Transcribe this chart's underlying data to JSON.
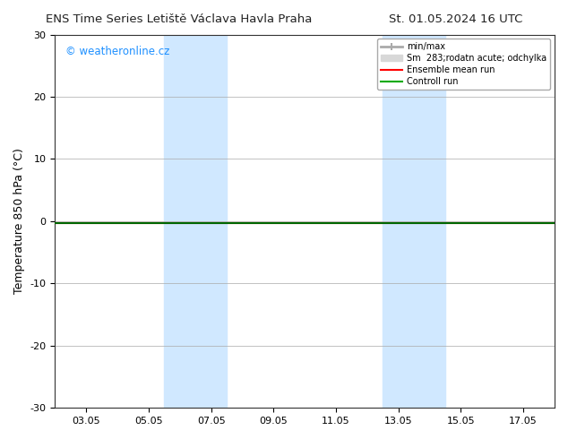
{
  "title_left": "ENS Time Series Letiště Václava Havla Praha",
  "title_right": "St. 01.05.2024 16 UTC",
  "ylabel": "Temperature 850 hPa (°C)",
  "watermark": "© weatheronline.cz",
  "watermark_color": "#1E90FF",
  "xlim_start": "2024-05-02",
  "xlim_end": "2024-05-18",
  "ylim": [
    -30,
    30
  ],
  "yticks": [
    -30,
    -20,
    -10,
    0,
    10,
    20,
    30
  ],
  "xtick_labels": [
    "03.05",
    "05.05",
    "07.05",
    "09.05",
    "11.05",
    "13.05",
    "15.05",
    "17.05"
  ],
  "xtick_positions": [
    1,
    3,
    5,
    7,
    9,
    11,
    13,
    15
  ],
  "bg_color": "#ffffff",
  "plot_bg_color": "#ffffff",
  "grid_color": "#aaaaaa",
  "shaded_regions": [
    {
      "x_start": 3.5,
      "x_end": 5.5,
      "color": "#d0e8ff"
    },
    {
      "x_start": 10.5,
      "x_end": 12.5,
      "color": "#d0e8ff"
    }
  ],
  "control_run_y": -0.3,
  "ensemble_mean_y": -0.3,
  "legend_entries": [
    {
      "label": "min/max",
      "color": "#bbbbbb",
      "lw": 3
    },
    {
      "label": "Sm  283;rodatn acute; odchylka",
      "color": "#cccccc",
      "lw": 6
    },
    {
      "label": "Ensemble mean run",
      "color": "#ff0000",
      "lw": 1.5
    },
    {
      "label": "Controll run",
      "color": "#00aa00",
      "lw": 1.5
    }
  ],
  "hline_y": -0.3,
  "hline_color": "#006600",
  "hline_lw": 1.5,
  "ensemble_mean_color": "#ff0000",
  "ensemble_mean_lw": 1.5
}
